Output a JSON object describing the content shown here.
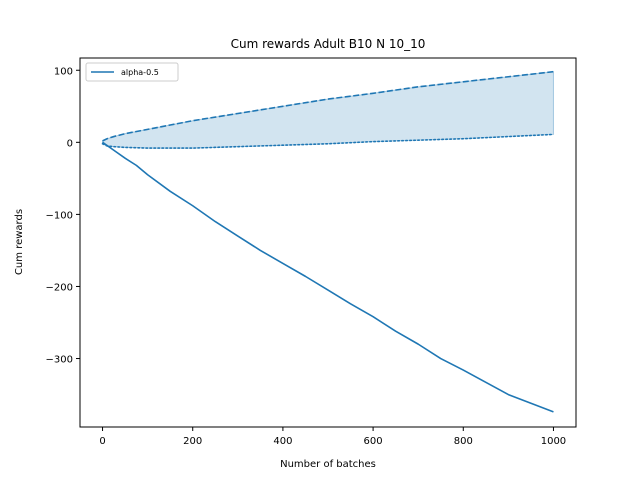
{
  "chart_data": {
    "type": "line",
    "title": "Cum rewards Adult B10 N 10_10",
    "xlabel": "Number of batches",
    "ylabel": "Cum rewards",
    "xlim": [
      -50,
      1050
    ],
    "ylim": [
      -395,
      117
    ],
    "xticks": [
      0,
      200,
      400,
      600,
      800,
      1000
    ],
    "yticks": [
      100,
      0,
      -100,
      -200,
      -300
    ],
    "xtick_labels": [
      "0",
      "200",
      "400",
      "600",
      "800",
      "1000"
    ],
    "ytick_labels": [
      "100",
      "0",
      "−100",
      "−200",
      "−300"
    ],
    "legend": {
      "position": "top-left",
      "entries": [
        "alpha-0.5"
      ]
    },
    "grid": false,
    "color": "#1f77b4",
    "series": [
      {
        "name": "alpha-0.5",
        "style": "solid",
        "x": [
          0,
          25,
          50,
          75,
          100,
          150,
          200,
          250,
          300,
          350,
          400,
          450,
          500,
          550,
          600,
          650,
          700,
          750,
          800,
          850,
          900,
          950,
          1000
        ],
        "y": [
          0,
          -11,
          -22,
          -32,
          -45,
          -68,
          -88,
          -110,
          -130,
          -150,
          -168,
          -186,
          -205,
          -224,
          -242,
          -262,
          -280,
          -300,
          -316,
          -333,
          -350,
          -362,
          -374
        ]
      },
      {
        "style": "dashed",
        "x": [
          0,
          10,
          25,
          50,
          100,
          150,
          200,
          300,
          400,
          500,
          600,
          700,
          800,
          900,
          1000
        ],
        "y": [
          2,
          5,
          8,
          12,
          18,
          24,
          30,
          40,
          50,
          60,
          68,
          77,
          84,
          91,
          98
        ]
      },
      {
        "style": "dotted",
        "x": [
          0,
          10,
          25,
          50,
          100,
          150,
          200,
          300,
          400,
          500,
          600,
          700,
          800,
          900,
          1000
        ],
        "y": [
          -2,
          -5,
          -6,
          -7,
          -8,
          -8,
          -8,
          -6,
          -4,
          -2,
          1,
          3,
          5,
          8,
          11
        ]
      }
    ],
    "band": {
      "between": [
        "dashed",
        "dotted"
      ],
      "x_range": [
        0,
        1000
      ],
      "color": "#1f77b4",
      "opacity": 0.2
    }
  }
}
